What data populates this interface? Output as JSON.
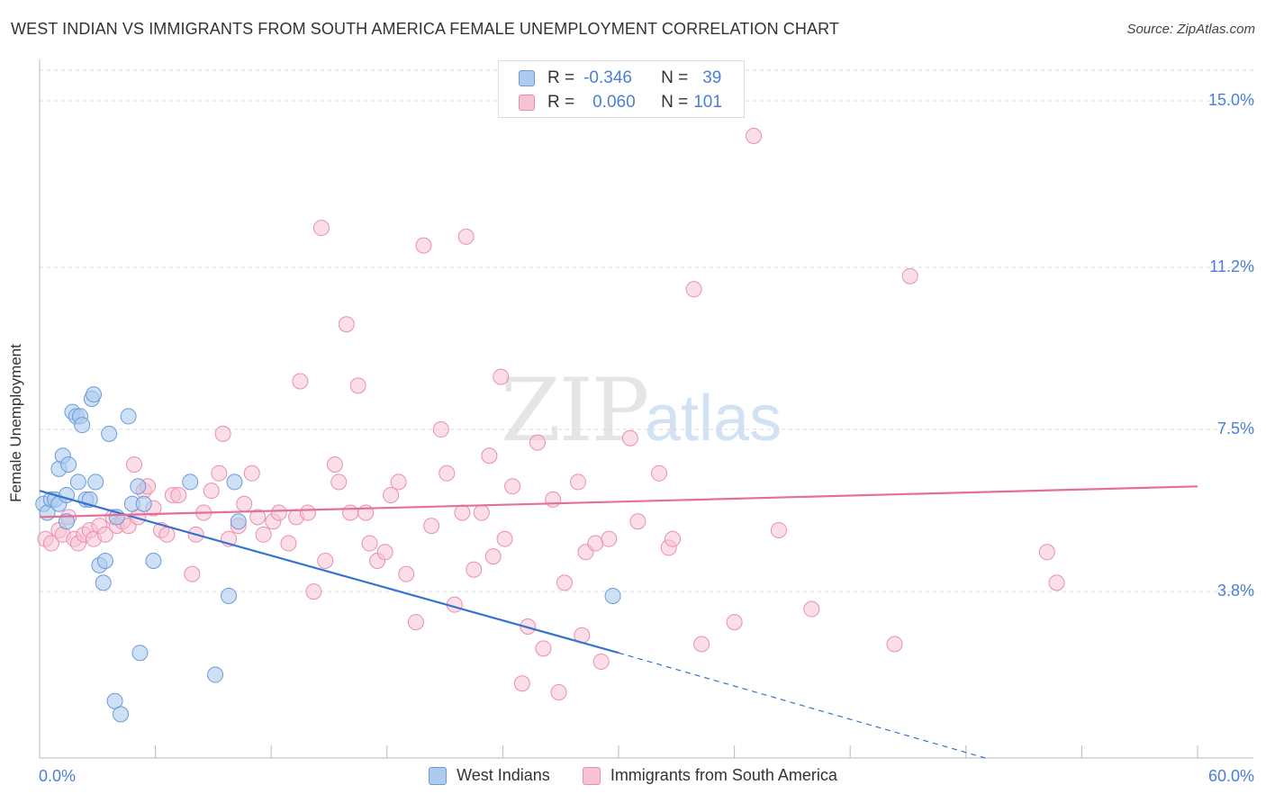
{
  "title": "WEST INDIAN VS IMMIGRANTS FROM SOUTH AMERICA FEMALE UNEMPLOYMENT CORRELATION CHART",
  "source": "Source: ZipAtlas.com",
  "watermark": {
    "zip": "ZIP",
    "atlas": "atlas"
  },
  "legend": {
    "r_label": "R =",
    "n_label": "N =",
    "rows": [
      {
        "r": "-0.346",
        "n": "39"
      },
      {
        "r": "0.060",
        "n": "101"
      }
    ]
  },
  "colors": {
    "blue_fill": "#aecbee",
    "blue_stroke": "#6a9bd8",
    "blue_line": "#3473d1",
    "pink_fill": "#f7c3d3",
    "pink_stroke": "#ea8fad",
    "pink_line": "#e46f99",
    "grid": "#d9d9d9",
    "axis_text": "#4a7fd6"
  },
  "chart_data": {
    "type": "scatter",
    "title": "WEST INDIAN VS IMMIGRANTS FROM SOUTH AMERICA FEMALE UNEMPLOYMENT CORRELATION CHART",
    "xlabel": "",
    "ylabel": "Female Unemployment",
    "xlim": [
      0,
      60
    ],
    "ylim": [
      0,
      15.7
    ],
    "x_tick_labels": [
      "0.0%",
      "60.0%"
    ],
    "y_ticks": [
      3.8,
      7.5,
      11.2,
      15.0
    ],
    "y_tick_labels": [
      "3.8%",
      "7.5%",
      "11.2%",
      "15.0%"
    ],
    "grid": "horizontal dashed",
    "legend_position": "top-center",
    "series": [
      {
        "name": "West Indians",
        "color": "#6a9bd8",
        "r": -0.346,
        "n": 39,
        "trend": {
          "x0": 0,
          "y0": 6.1,
          "x1": 30,
          "y1": 2.4,
          "dash_to_x": 49,
          "dash_to_y": 0.0
        },
        "points": [
          [
            0.2,
            5.8
          ],
          [
            0.4,
            5.6
          ],
          [
            0.6,
            5.9
          ],
          [
            0.8,
            5.9
          ],
          [
            1.0,
            5.8
          ],
          [
            1.0,
            6.6
          ],
          [
            1.2,
            6.9
          ],
          [
            1.4,
            5.4
          ],
          [
            1.4,
            6.0
          ],
          [
            1.5,
            6.7
          ],
          [
            1.7,
            7.9
          ],
          [
            1.9,
            7.8
          ],
          [
            2.0,
            6.3
          ],
          [
            2.1,
            7.8
          ],
          [
            2.2,
            7.6
          ],
          [
            2.4,
            5.9
          ],
          [
            2.6,
            5.9
          ],
          [
            2.7,
            8.2
          ],
          [
            2.8,
            8.3
          ],
          [
            2.9,
            6.3
          ],
          [
            3.1,
            4.4
          ],
          [
            3.3,
            4.0
          ],
          [
            3.4,
            4.5
          ],
          [
            3.6,
            7.4
          ],
          [
            3.9,
            1.3
          ],
          [
            4.0,
            5.5
          ],
          [
            4.2,
            1.0
          ],
          [
            4.6,
            7.8
          ],
          [
            4.8,
            5.8
          ],
          [
            5.1,
            6.2
          ],
          [
            5.2,
            2.4
          ],
          [
            5.4,
            5.8
          ],
          [
            5.9,
            4.5
          ],
          [
            7.8,
            6.3
          ],
          [
            9.1,
            1.9
          ],
          [
            9.8,
            3.7
          ],
          [
            10.1,
            6.3
          ],
          [
            10.3,
            5.4
          ],
          [
            29.7,
            3.7
          ]
        ]
      },
      {
        "name": "Immigrants from South America",
        "color": "#ea8fad",
        "r": 0.06,
        "n": 101,
        "trend": {
          "x0": 0,
          "y0": 5.5,
          "x1": 60,
          "y1": 6.2
        },
        "points": [
          [
            0.3,
            5.0
          ],
          [
            0.6,
            4.9
          ],
          [
            1.0,
            5.2
          ],
          [
            1.2,
            5.1
          ],
          [
            1.5,
            5.5
          ],
          [
            1.8,
            5.0
          ],
          [
            2.0,
            4.9
          ],
          [
            2.3,
            5.1
          ],
          [
            2.6,
            5.2
          ],
          [
            2.8,
            5.0
          ],
          [
            3.1,
            5.3
          ],
          [
            3.4,
            5.1
          ],
          [
            3.8,
            5.5
          ],
          [
            4.0,
            5.3
          ],
          [
            4.3,
            5.4
          ],
          [
            4.6,
            5.3
          ],
          [
            4.9,
            6.7
          ],
          [
            5.1,
            5.5
          ],
          [
            5.4,
            6.1
          ],
          [
            5.6,
            6.2
          ],
          [
            5.9,
            5.7
          ],
          [
            6.3,
            5.2
          ],
          [
            6.6,
            5.1
          ],
          [
            6.9,
            6.0
          ],
          [
            7.2,
            6.0
          ],
          [
            7.9,
            4.2
          ],
          [
            8.1,
            5.1
          ],
          [
            8.5,
            5.6
          ],
          [
            8.9,
            6.1
          ],
          [
            9.3,
            6.5
          ],
          [
            9.5,
            7.4
          ],
          [
            9.8,
            5.0
          ],
          [
            10.3,
            5.3
          ],
          [
            10.6,
            5.8
          ],
          [
            11.0,
            6.5
          ],
          [
            11.3,
            5.5
          ],
          [
            11.6,
            5.1
          ],
          [
            12.1,
            5.4
          ],
          [
            12.4,
            5.6
          ],
          [
            12.9,
            4.9
          ],
          [
            13.3,
            5.5
          ],
          [
            13.5,
            8.6
          ],
          [
            13.9,
            5.6
          ],
          [
            14.2,
            3.8
          ],
          [
            14.6,
            12.1
          ],
          [
            14.8,
            4.5
          ],
          [
            15.3,
            6.7
          ],
          [
            15.5,
            6.3
          ],
          [
            15.9,
            9.9
          ],
          [
            16.1,
            5.6
          ],
          [
            16.5,
            8.5
          ],
          [
            16.9,
            5.6
          ],
          [
            17.1,
            4.9
          ],
          [
            17.5,
            4.5
          ],
          [
            17.9,
            4.7
          ],
          [
            18.2,
            6.0
          ],
          [
            18.6,
            6.3
          ],
          [
            19.0,
            4.2
          ],
          [
            19.5,
            3.1
          ],
          [
            19.9,
            11.7
          ],
          [
            20.3,
            5.3
          ],
          [
            20.8,
            7.5
          ],
          [
            21.1,
            6.5
          ],
          [
            21.5,
            3.5
          ],
          [
            21.9,
            5.6
          ],
          [
            22.1,
            11.9
          ],
          [
            22.5,
            4.3
          ],
          [
            22.9,
            5.6
          ],
          [
            23.3,
            6.9
          ],
          [
            23.5,
            4.6
          ],
          [
            23.9,
            8.7
          ],
          [
            24.1,
            5.0
          ],
          [
            24.5,
            6.2
          ],
          [
            25.0,
            1.7
          ],
          [
            25.3,
            3.0
          ],
          [
            25.8,
            7.2
          ],
          [
            26.1,
            2.5
          ],
          [
            26.6,
            5.9
          ],
          [
            26.9,
            1.5
          ],
          [
            27.2,
            4.0
          ],
          [
            27.9,
            6.3
          ],
          [
            28.1,
            2.8
          ],
          [
            28.3,
            4.7
          ],
          [
            28.8,
            4.9
          ],
          [
            29.1,
            2.2
          ],
          [
            29.5,
            5.0
          ],
          [
            30.6,
            7.3
          ],
          [
            31.0,
            5.4
          ],
          [
            32.1,
            6.5
          ],
          [
            32.6,
            4.8
          ],
          [
            32.8,
            5.0
          ],
          [
            33.9,
            10.7
          ],
          [
            34.3,
            2.6
          ],
          [
            37.0,
            14.2
          ],
          [
            44.3,
            2.6
          ],
          [
            45.1,
            11.0
          ],
          [
            52.2,
            4.7
          ],
          [
            52.7,
            4.0
          ],
          [
            36.0,
            3.1
          ],
          [
            38.3,
            5.2
          ],
          [
            40.0,
            3.4
          ]
        ]
      }
    ]
  },
  "bottom_legend": [
    "West Indians",
    "Immigrants from South America"
  ]
}
